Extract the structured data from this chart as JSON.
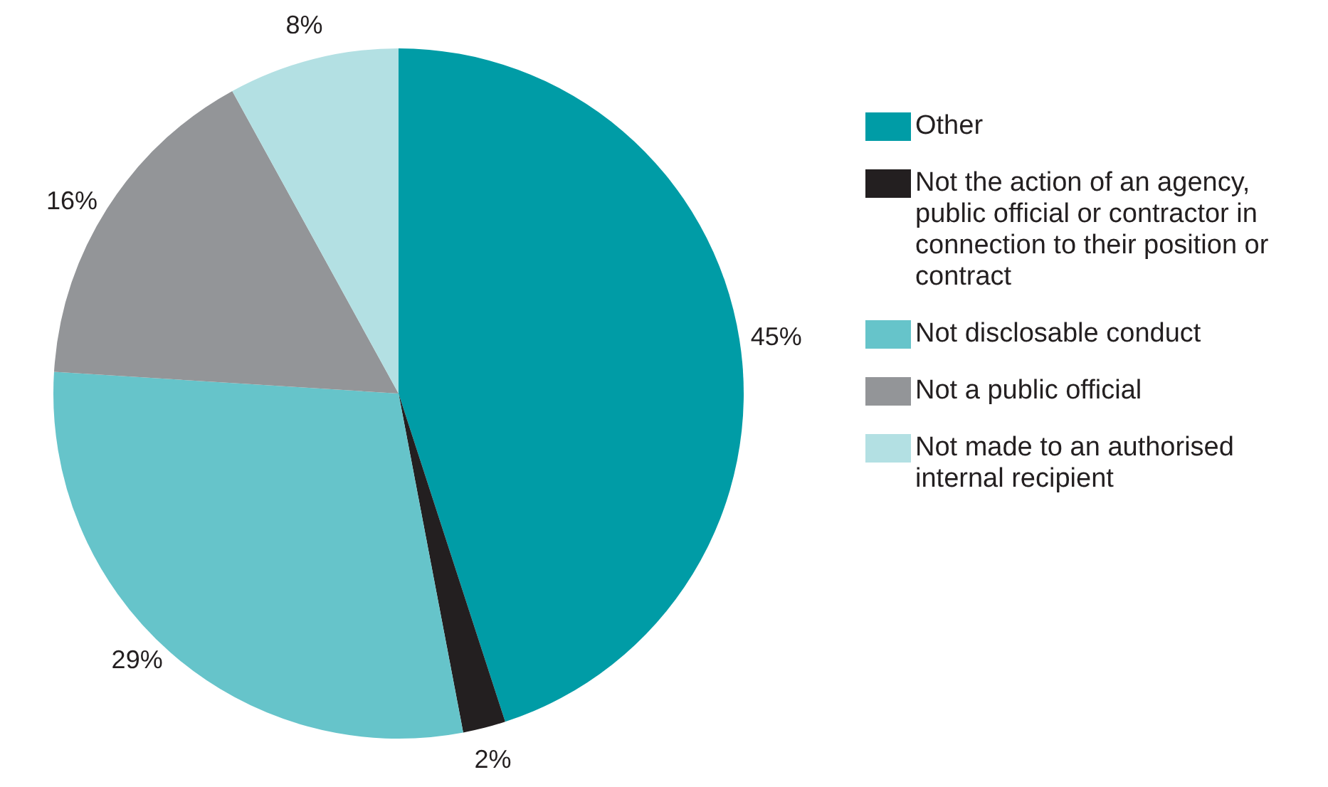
{
  "chart_data": {
    "type": "pie",
    "categories": [
      "Other",
      "Not the action of an agency, public official or contractor in connection to their position or contract",
      "Not disclosable conduct",
      "Not a public official",
      "Not made to an authorised internal recipient"
    ],
    "values": [
      45,
      2,
      29,
      16,
      8
    ],
    "colors": [
      "#009ca6",
      "#231f20",
      "#66c4ca",
      "#939598",
      "#b3e0e3"
    ],
    "value_labels": [
      "45%",
      "2%",
      "29%",
      "16%",
      "8%"
    ],
    "legend": "right"
  }
}
